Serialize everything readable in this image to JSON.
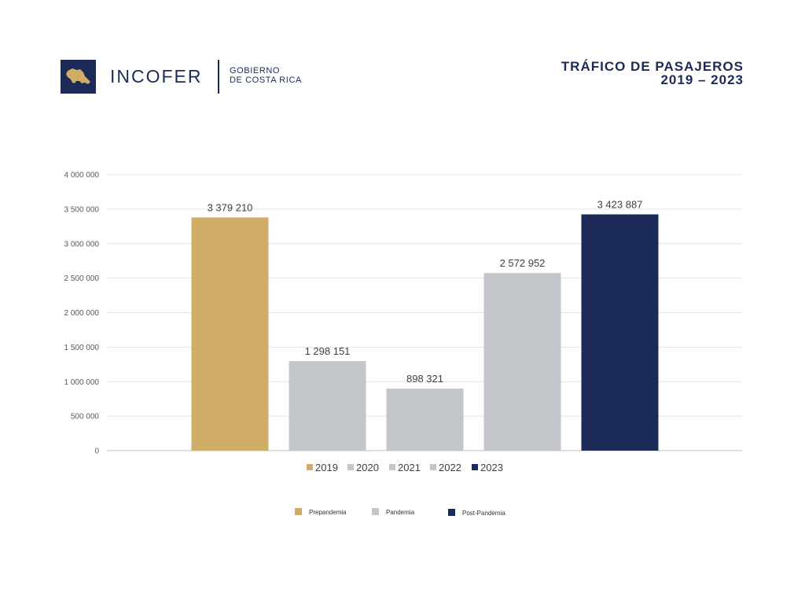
{
  "header": {
    "brand": "INCOFER",
    "government_line1": "GOBIERNO",
    "government_line2": "DE COSTA RICA",
    "title_line1": "TRÁFICO DE PASAJEROS",
    "title_line2": "2019 – 2023",
    "emblem_icon": "costa-rica-map-icon"
  },
  "colors": {
    "navy": "#1b2a57",
    "gold": "#d0ad67",
    "gray": "#c2c5ca"
  },
  "chart_data": {
    "type": "bar",
    "categories": [
      "2019",
      "2020",
      "2021",
      "2022",
      "2023"
    ],
    "values": [
      3379210,
      1298151,
      898321,
      2572952,
      3423887
    ],
    "value_labels": [
      "3 379 210",
      "1 298 151",
      "898 321",
      "2 572 952",
      "3 423 887"
    ],
    "bar_colors": [
      "#d0ad67",
      "#c2c5ca",
      "#c2c5ca",
      "#c2c5ca",
      "#1b2a57"
    ],
    "ylim": [
      0,
      4000000
    ],
    "yticks": [
      0,
      500000,
      1000000,
      1500000,
      2000000,
      2500000,
      3000000,
      3500000,
      4000000
    ],
    "ytick_labels": [
      "0",
      "500 000",
      "1 000 000",
      "1 500 000",
      "2 000 000",
      "2 500 000",
      "3 000 000",
      "3 500 000",
      "4 000 000"
    ],
    "grid": true,
    "legend_position": "bottom",
    "legend": [
      {
        "label": "2019",
        "color": "#d0ad67"
      },
      {
        "label": "2020",
        "color": "#c2c5ca"
      },
      {
        "label": "2021",
        "color": "#c2c5ca"
      },
      {
        "label": "2022",
        "color": "#c2c5ca"
      },
      {
        "label": "2023",
        "color": "#1b2a57"
      }
    ],
    "category_legend": [
      {
        "label": "Prepandemia",
        "color": "#d0ad67"
      },
      {
        "label": "Pandemia",
        "color": "#c2c5ca"
      },
      {
        "label": "Post-Pandemia",
        "color": "#1b2a57"
      }
    ],
    "title": "",
    "xlabel": "",
    "ylabel": ""
  }
}
